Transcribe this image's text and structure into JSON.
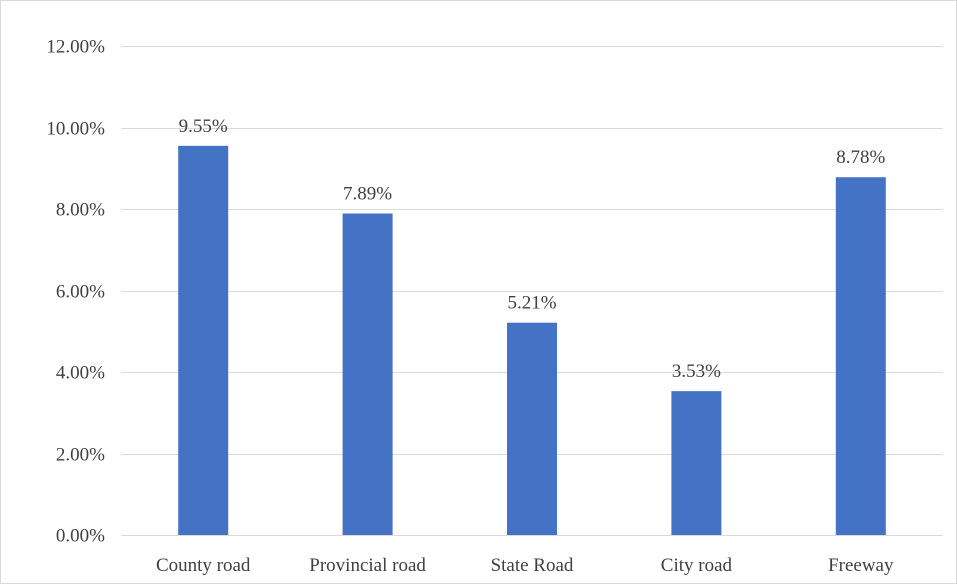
{
  "chart_data": {
    "type": "bar",
    "categories": [
      "County road",
      "Provincial road",
      "State Road",
      "City road",
      "Freeway"
    ],
    "values": [
      9.55,
      7.89,
      5.21,
      3.53,
      8.78
    ],
    "data_labels": [
      "9.55%",
      "7.89%",
      "5.21%",
      "3.53%",
      "8.78%"
    ],
    "y_ticks": [
      0,
      2,
      4,
      6,
      8,
      10,
      12
    ],
    "y_tick_labels": [
      "0.00%",
      "2.00%",
      "4.00%",
      "6.00%",
      "8.00%",
      "10.00%",
      "12.00%"
    ],
    "ylim": [
      0,
      12
    ],
    "title": "",
    "xlabel": "",
    "ylabel": "",
    "grid": true,
    "legend": "none",
    "bar_color": "#4472c4"
  }
}
